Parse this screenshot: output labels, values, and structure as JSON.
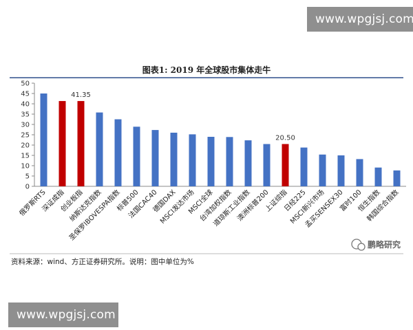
{
  "watermarks": {
    "top": "www.wpgjsj.com",
    "bottom": "www.wpgjsj.com"
  },
  "footer": {
    "source": "资料来源：wind、方正证券研究所。说明：图中单位为%"
  },
  "logo": {
    "text": "鹏略研究",
    "icon": "wechat-icon"
  },
  "colors": {
    "normal": "#4472C4",
    "highlight": "#C00000",
    "topline": "#2E4E8A"
  },
  "chart_data": {
    "type": "bar",
    "title": "图表1:   2019 年全球股市集体走牛",
    "xlabel": "",
    "ylabel": "",
    "ylim": [
      0,
      50
    ],
    "yticks": [
      0,
      5,
      10,
      15,
      20,
      25,
      30,
      35,
      40,
      45,
      50
    ],
    "grid": false,
    "categories": [
      "俄罗斯RTS",
      "深证成指",
      "创业板指",
      "纳斯达克指数",
      "圣保罗IBOVESPA指数",
      "标普500",
      "法国CAC40",
      "德国DAX",
      "MSCI发达市场",
      "MSCI全球",
      "台湾加权指数",
      "道琼斯工业指数",
      "澳洲标普200",
      "上证综指",
      "日经225",
      "MSCI新兴市场",
      "孟买SENSEX30",
      "富时100",
      "恒生指数",
      "韩国综合指数"
    ],
    "values": [
      45.0,
      41.35,
      41.35,
      35.8,
      32.5,
      28.9,
      27.3,
      26.0,
      25.2,
      24.0,
      23.9,
      22.3,
      20.5,
      20.5,
      18.8,
      15.4,
      15.0,
      13.2,
      9.1,
      7.7
    ],
    "highlighted": [
      false,
      true,
      true,
      false,
      false,
      false,
      false,
      false,
      false,
      false,
      false,
      false,
      false,
      true,
      false,
      false,
      false,
      false,
      false,
      false
    ],
    "data_labels": [
      {
        "index": 2,
        "text": "41.35"
      },
      {
        "index": 13,
        "text": "20.50"
      }
    ]
  }
}
